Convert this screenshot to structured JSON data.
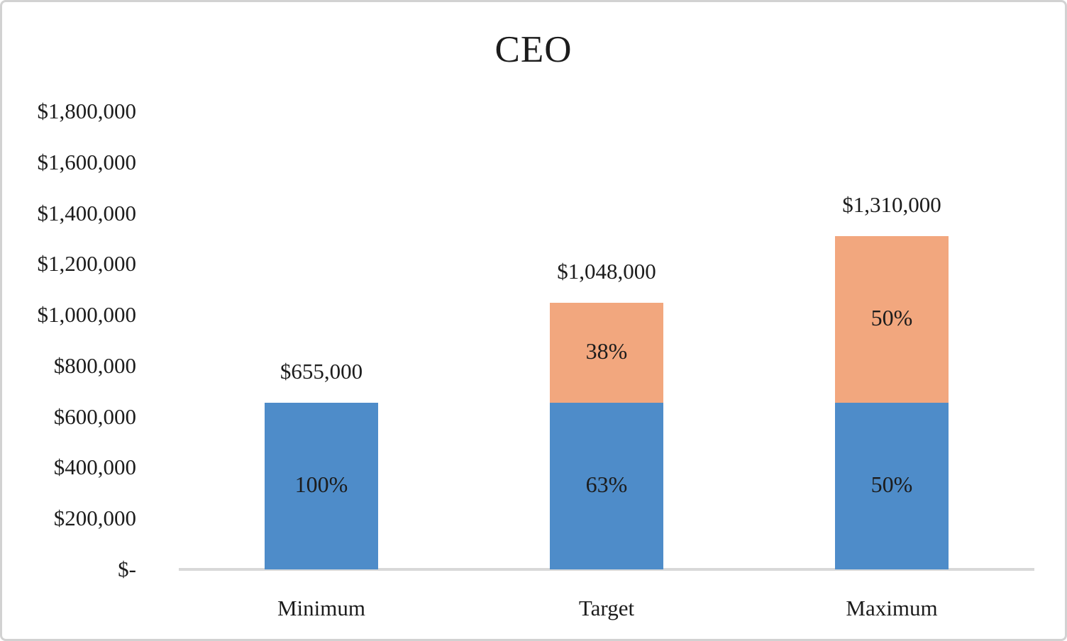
{
  "chart_data": {
    "type": "bar",
    "stacked": true,
    "title": "CEO",
    "categories": [
      "Minimum",
      "Target",
      "Maximum"
    ],
    "series": [
      {
        "name": "series-blue",
        "color": "#4e8cc9",
        "values": [
          655000,
          655000,
          655000
        ],
        "segment_labels": [
          "100%",
          "63%",
          "50%"
        ]
      },
      {
        "name": "series-orange",
        "color": "#f2a77e",
        "values": [
          0,
          393000,
          655000
        ],
        "segment_labels": [
          null,
          "38%",
          "50%"
        ]
      }
    ],
    "totals": [
      {
        "value": 655000,
        "label": "$655,000"
      },
      {
        "value": 1048000,
        "label": "$1,048,000"
      },
      {
        "value": 1310000,
        "label": "$1,310,000"
      }
    ],
    "y_axis": {
      "min": 0,
      "max": 1800000,
      "tick_step": 200000,
      "ticks": [
        {
          "value": 1800000,
          "label": "$1,800,000"
        },
        {
          "value": 1600000,
          "label": "$1,600,000"
        },
        {
          "value": 1400000,
          "label": "$1,400,000"
        },
        {
          "value": 1200000,
          "label": "$1,200,000"
        },
        {
          "value": 1000000,
          "label": "$1,000,000"
        },
        {
          "value": 800000,
          "label": "$800,000"
        },
        {
          "value": 600000,
          "label": "$600,000"
        },
        {
          "value": 400000,
          "label": "$400,000"
        },
        {
          "value": 200000,
          "label": "$200,000"
        },
        {
          "value": 0,
          "label": "$-"
        }
      ]
    },
    "grid": false,
    "legend_position": "none",
    "colors": {
      "axis_line": "#d8d8d8",
      "text": "#1c1c1c",
      "background": "#ffffff",
      "frame_border": "#d2d2d2"
    }
  }
}
